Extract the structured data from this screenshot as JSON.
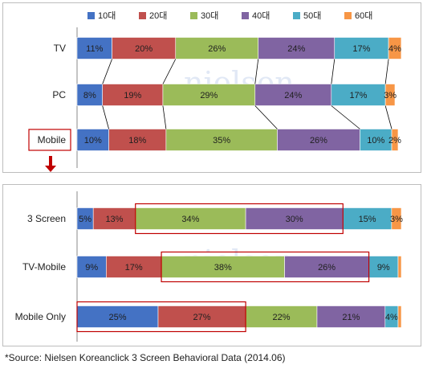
{
  "chart_data": [
    {
      "type": "bar",
      "stacked": true,
      "orientation": "horizontal",
      "legend_position": "top",
      "categories": [
        "TV",
        "PC",
        "Mobile"
      ],
      "series": [
        {
          "name": "10대",
          "color": "#4472C4",
          "values": [
            11,
            8,
            10
          ]
        },
        {
          "name": "20대",
          "color": "#C0504D",
          "values": [
            20,
            19,
            18
          ]
        },
        {
          "name": "30대",
          "color": "#9BBB59",
          "values": [
            26,
            29,
            35
          ]
        },
        {
          "name": "40대",
          "color": "#8064A2",
          "values": [
            24,
            24,
            26
          ]
        },
        {
          "name": "50대",
          "color": "#4BACC6",
          "values": [
            17,
            17,
            10
          ]
        },
        {
          "name": "60대",
          "color": "#F79646",
          "values": [
            4,
            3,
            2
          ]
        }
      ],
      "xlim": [
        0,
        100
      ],
      "watermark": "nielsen",
      "highlighted_category": "Mobile"
    },
    {
      "type": "bar",
      "stacked": true,
      "orientation": "horizontal",
      "categories": [
        "3 Screen",
        "TV-Mobile",
        "Mobile Only"
      ],
      "series": [
        {
          "name": "10대",
          "color": "#4472C4",
          "values": [
            5,
            9,
            25
          ]
        },
        {
          "name": "20대",
          "color": "#C0504D",
          "values": [
            13,
            17,
            27
          ]
        },
        {
          "name": "30대",
          "color": "#9BBB59",
          "values": [
            34,
            38,
            22
          ]
        },
        {
          "name": "40대",
          "color": "#8064A2",
          "values": [
            30,
            26,
            21
          ]
        },
        {
          "name": "50대",
          "color": "#4BACC6",
          "values": [
            15,
            9,
            4
          ]
        },
        {
          "name": "60대",
          "color": "#F79646",
          "values": [
            3,
            1,
            1
          ]
        }
      ],
      "xlim": [
        0,
        100
      ],
      "watermark": "nielsen",
      "highlights": [
        {
          "category": "3 Screen",
          "series": [
            "30대",
            "40대"
          ]
        },
        {
          "category": "TV-Mobile",
          "series": [
            "30대",
            "40대"
          ]
        },
        {
          "category": "Mobile Only",
          "series": [
            "10대",
            "20대"
          ]
        }
      ]
    }
  ],
  "source": "*Source: Nielsen Koreanclick 3 Screen Behavioral Data (2014.06)",
  "colors": {
    "highlight_box": "#C00000",
    "arrow": "#C00000",
    "connector": "#000000"
  }
}
